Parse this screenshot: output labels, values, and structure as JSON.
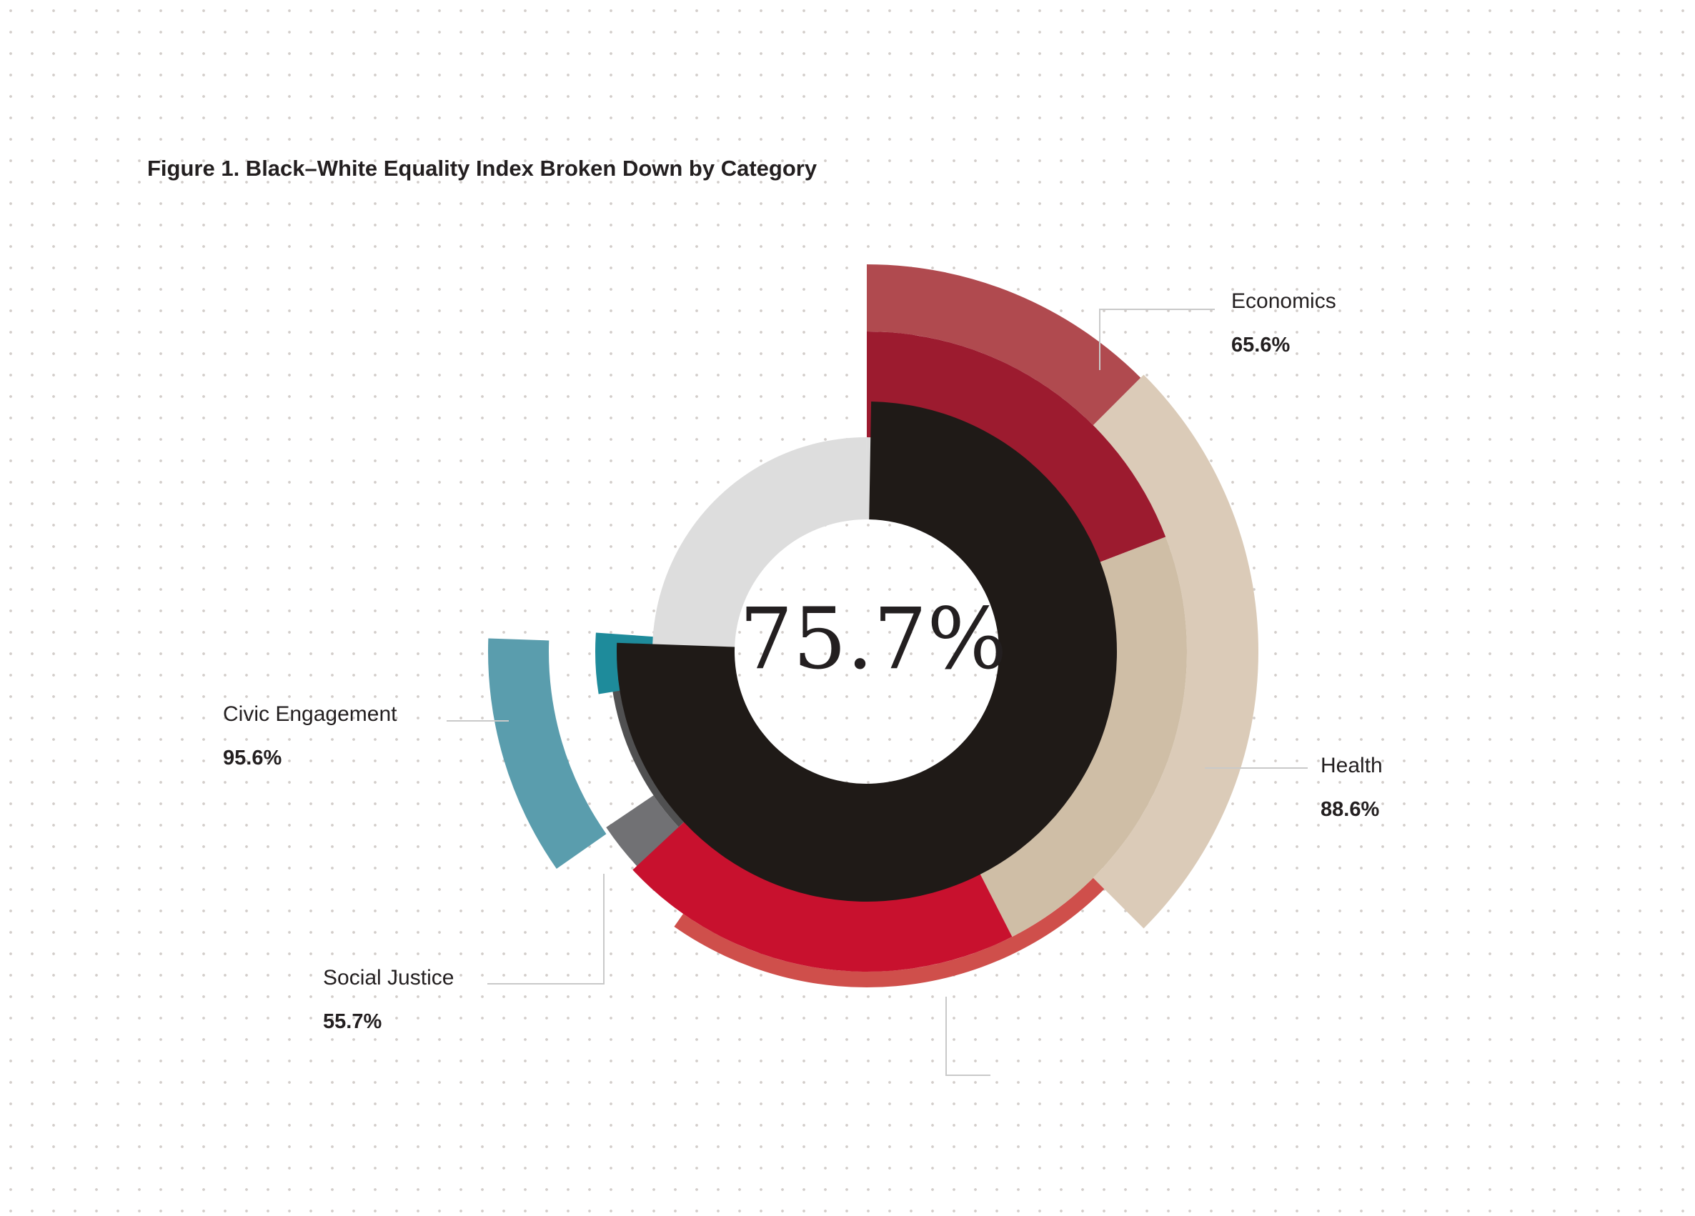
{
  "title": "Figure 1. Black–White Equality Index Broken Down by Category",
  "chart_data": {
    "type": "radial-bar",
    "title": "Figure 1. Black–White Equality Index Broken Down by Category",
    "overall": {
      "label": "75.7%",
      "value": 75.7
    },
    "categories": [
      {
        "name": "Economics",
        "label": "65.6%",
        "value": 65.6,
        "color_outer": "#b04a4f",
        "color_inner": "#9c1b2f"
      },
      {
        "name": "Health",
        "label": "88.6%",
        "value": 88.6,
        "color_outer": "#dbcbb8",
        "color_inner": "#cfbea6"
      },
      {
        "name": "",
        "label": "",
        "value": null,
        "color_outer": "#cf4f4b",
        "color_inner": "#c8112e"
      },
      {
        "name": "Social Justice",
        "label": "55.7%",
        "value": 55.7,
        "color_outer": "#717174",
        "color_inner": "#505051"
      },
      {
        "name": "Civic Engagement",
        "label": "95.6%",
        "value": 95.6,
        "color_outer": "#5a9dad",
        "color_inner": "#1e8b9b"
      }
    ],
    "colors": {
      "overall_ring": "#1f1a17",
      "background_ring": "#dddddd",
      "leader_line": "#c9c9c9"
    }
  }
}
